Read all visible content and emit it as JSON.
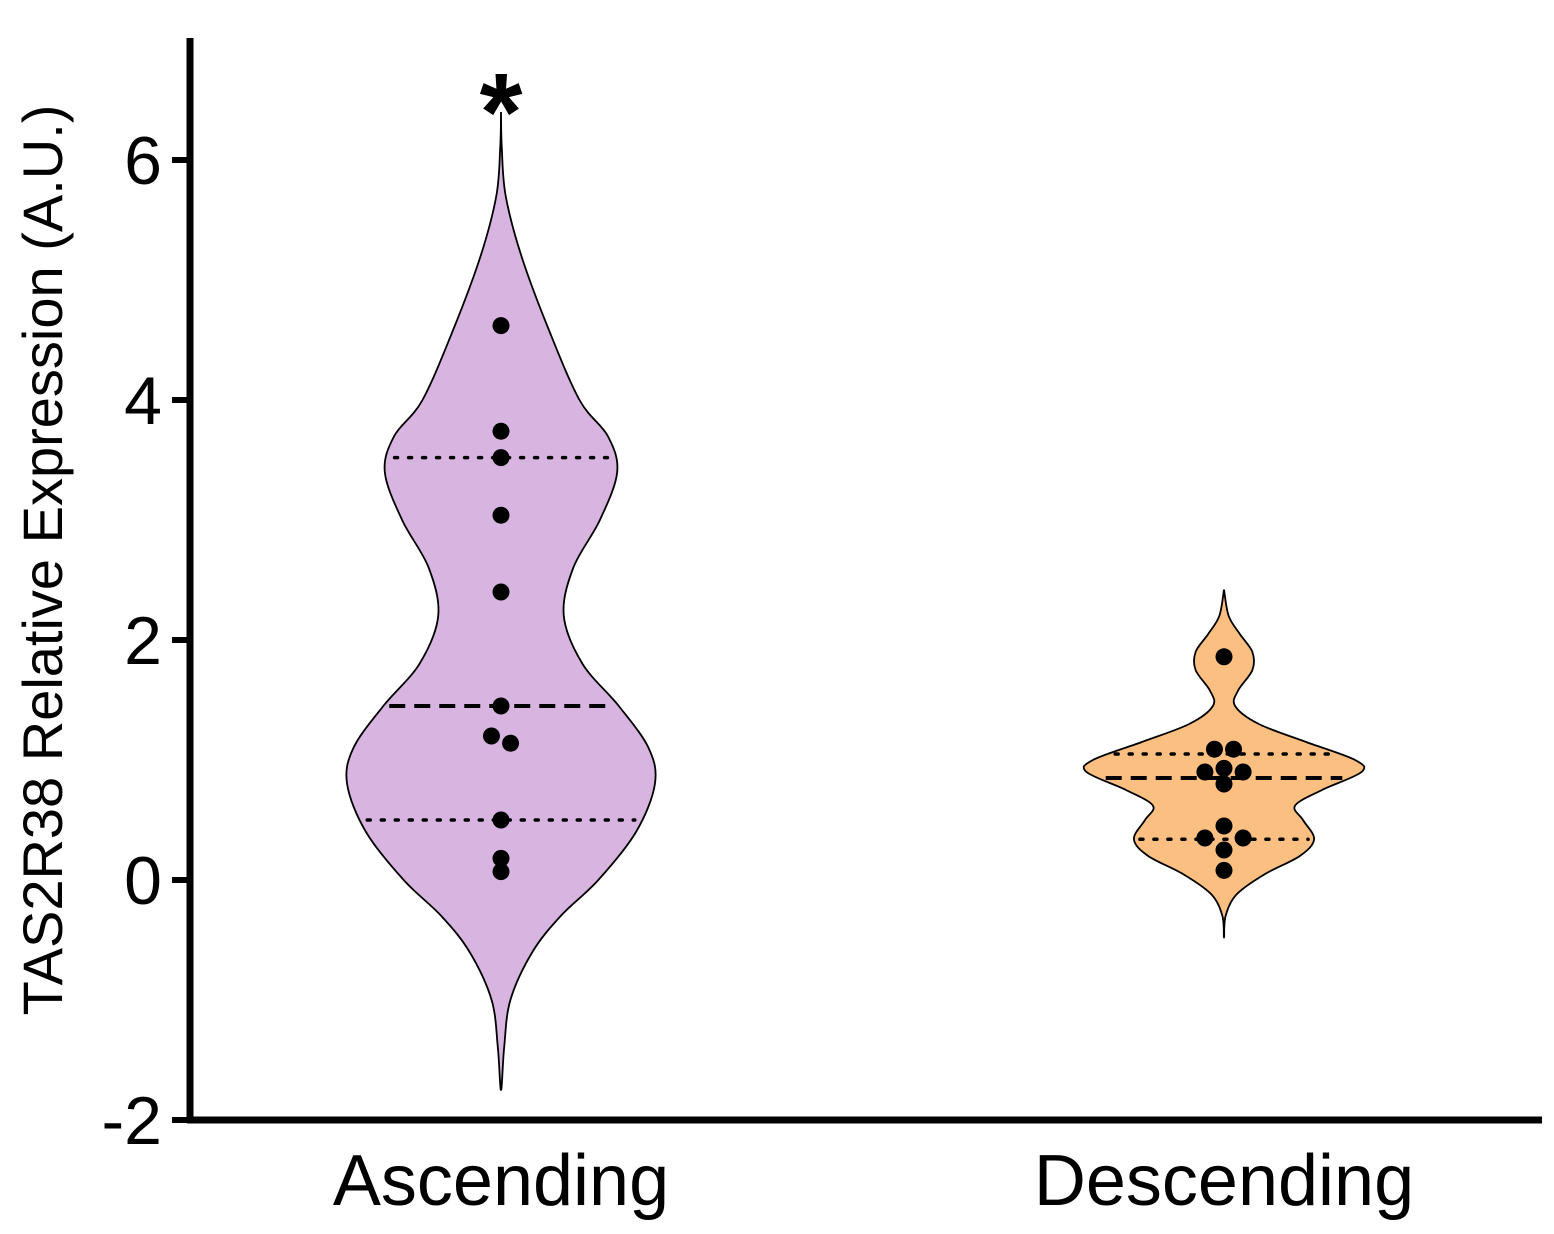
{
  "chart_data": {
    "type": "violin",
    "ylabel": "TAS2R38 Relative Expression (A.U.)",
    "xlabel": "",
    "ylim": [
      -2,
      7
    ],
    "yticks": [
      -2,
      0,
      2,
      4,
      6
    ],
    "ytick_labels": [
      "-2",
      "0",
      "2",
      "4",
      "6"
    ],
    "categories": [
      "Ascending",
      "Descending"
    ],
    "groups": [
      {
        "name": "Ascending",
        "color": "#d8b5e0",
        "significance": "*",
        "median": 1.45,
        "quartiles": [
          0.5,
          3.52
        ],
        "violin_range": [
          -1.75,
          6.4
        ],
        "density_profile": [
          {
            "y": -1.75,
            "w": 0.0
          },
          {
            "y": -1.4,
            "w": 0.02
          },
          {
            "y": -1.0,
            "w": 0.06
          },
          {
            "y": -0.6,
            "w": 0.2
          },
          {
            "y": -0.3,
            "w": 0.38
          },
          {
            "y": 0.0,
            "w": 0.62
          },
          {
            "y": 0.4,
            "w": 0.86
          },
          {
            "y": 0.8,
            "w": 0.98
          },
          {
            "y": 1.1,
            "w": 0.94
          },
          {
            "y": 1.45,
            "w": 0.75
          },
          {
            "y": 1.8,
            "w": 0.52
          },
          {
            "y": 2.2,
            "w": 0.4
          },
          {
            "y": 2.6,
            "w": 0.46
          },
          {
            "y": 3.0,
            "w": 0.63
          },
          {
            "y": 3.4,
            "w": 0.74
          },
          {
            "y": 3.7,
            "w": 0.68
          },
          {
            "y": 4.0,
            "w": 0.5
          },
          {
            "y": 4.6,
            "w": 0.3
          },
          {
            "y": 5.2,
            "w": 0.13
          },
          {
            "y": 5.7,
            "w": 0.03
          },
          {
            "y": 6.1,
            "w": 0.005
          },
          {
            "y": 6.4,
            "w": 0.0
          }
        ],
        "points": [
          {
            "x": 0,
            "y": 4.62
          },
          {
            "x": 0,
            "y": 3.74
          },
          {
            "x": 0,
            "y": 3.52
          },
          {
            "x": 0,
            "y": 3.04
          },
          {
            "x": 0,
            "y": 2.4
          },
          {
            "x": 0,
            "y": 1.45
          },
          {
            "x": -0.35,
            "y": 1.2
          },
          {
            "x": 0.35,
            "y": 1.14
          },
          {
            "x": 0,
            "y": 0.5
          },
          {
            "x": 0,
            "y": 0.18
          },
          {
            "x": 0,
            "y": 0.07
          }
        ]
      },
      {
        "name": "Descending",
        "color": "#fbbf81",
        "significance": "",
        "median": 0.85,
        "quartiles": [
          0.34,
          1.05
        ],
        "violin_range": [
          -0.48,
          2.42
        ],
        "density_profile": [
          {
            "y": -0.48,
            "w": 0.0
          },
          {
            "y": -0.3,
            "w": 0.01
          },
          {
            "y": -0.12,
            "w": 0.08
          },
          {
            "y": 0.05,
            "w": 0.26
          },
          {
            "y": 0.2,
            "w": 0.48
          },
          {
            "y": 0.34,
            "w": 0.57
          },
          {
            "y": 0.5,
            "w": 0.5
          },
          {
            "y": 0.62,
            "w": 0.45
          },
          {
            "y": 0.75,
            "w": 0.62
          },
          {
            "y": 0.9,
            "w": 0.87
          },
          {
            "y": 1.0,
            "w": 0.83
          },
          {
            "y": 1.15,
            "w": 0.52
          },
          {
            "y": 1.3,
            "w": 0.22
          },
          {
            "y": 1.45,
            "w": 0.07
          },
          {
            "y": 1.58,
            "w": 0.09
          },
          {
            "y": 1.75,
            "w": 0.18
          },
          {
            "y": 1.9,
            "w": 0.18
          },
          {
            "y": 2.05,
            "w": 0.1
          },
          {
            "y": 2.2,
            "w": 0.03
          },
          {
            "y": 2.42,
            "w": 0.0
          }
        ],
        "points": [
          {
            "x": 0,
            "y": 1.86
          },
          {
            "x": -0.35,
            "y": 1.09
          },
          {
            "x": 0.35,
            "y": 1.09
          },
          {
            "x": -0.7,
            "y": 0.9
          },
          {
            "x": 0,
            "y": 0.93
          },
          {
            "x": 0.7,
            "y": 0.9
          },
          {
            "x": 0,
            "y": 0.8
          },
          {
            "x": 0,
            "y": 0.45
          },
          {
            "x": -0.7,
            "y": 0.35
          },
          {
            "x": 0.7,
            "y": 0.35
          },
          {
            "x": 0,
            "y": 0.25
          },
          {
            "x": 0,
            "y": 0.08
          }
        ]
      }
    ]
  }
}
